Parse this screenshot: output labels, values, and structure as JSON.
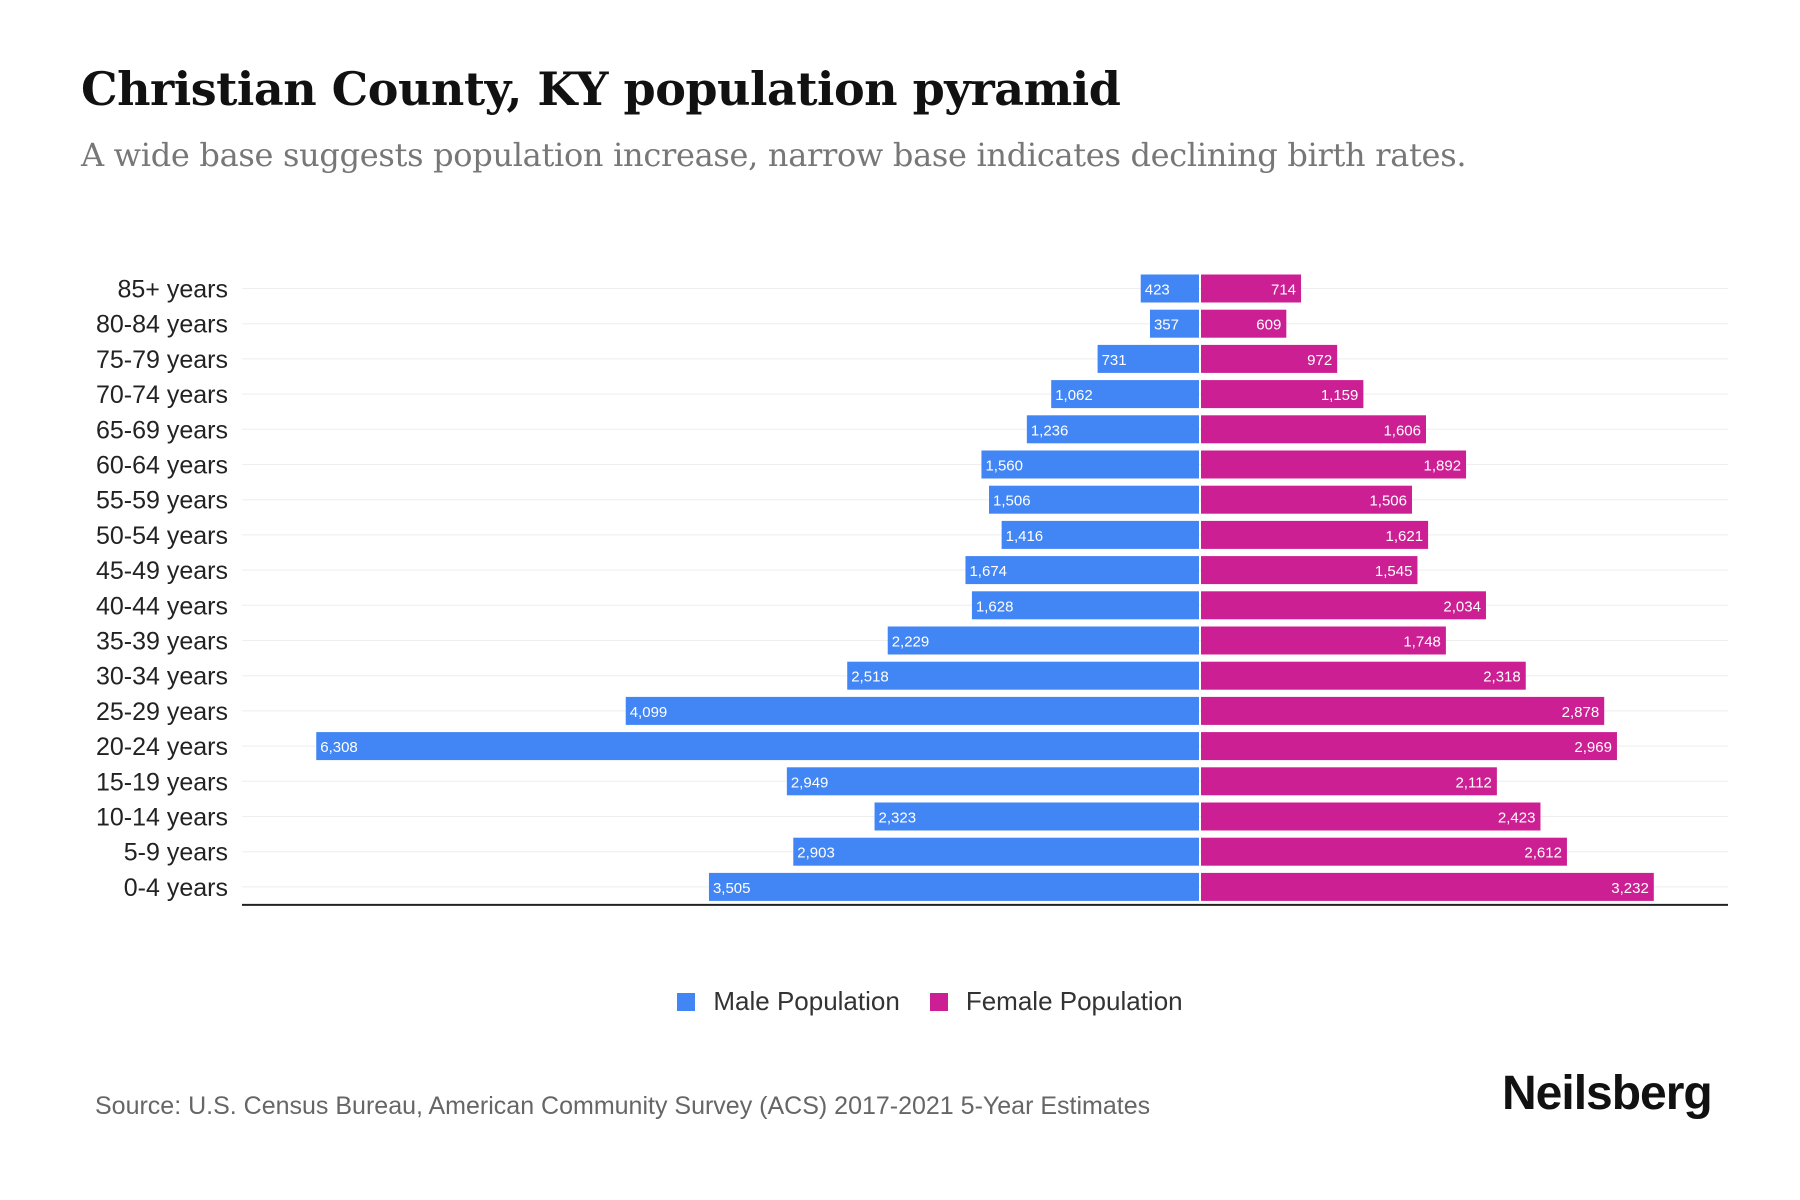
{
  "header": {
    "title": "Christian County, KY population pyramid",
    "subtitle": "A wide base suggests population increase, narrow base indicates declining birth rates."
  },
  "chart_data": {
    "type": "bar",
    "orientation": "horizontal-diverging",
    "categories": [
      "85+ years",
      "80-84 years",
      "75-79 years",
      "70-74 years",
      "65-69 years",
      "60-64 years",
      "55-59 years",
      "50-54 years",
      "45-49 years",
      "40-44 years",
      "35-39 years",
      "30-34 years",
      "25-29 years",
      "20-24 years",
      "15-19 years",
      "10-14 years",
      "5-9 years",
      "0-4 years"
    ],
    "series": [
      {
        "name": "Male Population",
        "color": "#4285f4",
        "values": [
          423,
          357,
          731,
          1062,
          1236,
          1560,
          1506,
          1416,
          1674,
          1628,
          2229,
          2518,
          4099,
          6308,
          2949,
          2323,
          2903,
          3505
        ],
        "labels": [
          "423",
          "357",
          "731",
          "1,062",
          "1,236",
          "1,560",
          "1,506",
          "1,416",
          "1,674",
          "1,628",
          "2,229",
          "2,518",
          "4,099",
          "6,308",
          "2,949",
          "2,323",
          "2,903",
          "3,505"
        ]
      },
      {
        "name": "Female Population",
        "color": "#cc1f93",
        "values": [
          714,
          609,
          972,
          1159,
          1606,
          1892,
          1506,
          1621,
          1545,
          2034,
          1748,
          2318,
          2878,
          2969,
          2112,
          2423,
          2612,
          3232
        ],
        "labels": [
          "714",
          "609",
          "972",
          "1,159",
          "1,606",
          "1,892",
          "1,506",
          "1,621",
          "1,545",
          "2,034",
          "1,748",
          "2,318",
          "2,878",
          "2,969",
          "2,112",
          "2,423",
          "2,612",
          "3,232"
        ]
      }
    ],
    "grid": true,
    "legend_position": "bottom"
  },
  "footer": {
    "source": "Source: U.S. Census Bureau, American Community Survey (ACS) 2017-2021 5-Year Estimates",
    "logo": "Neilsberg"
  }
}
